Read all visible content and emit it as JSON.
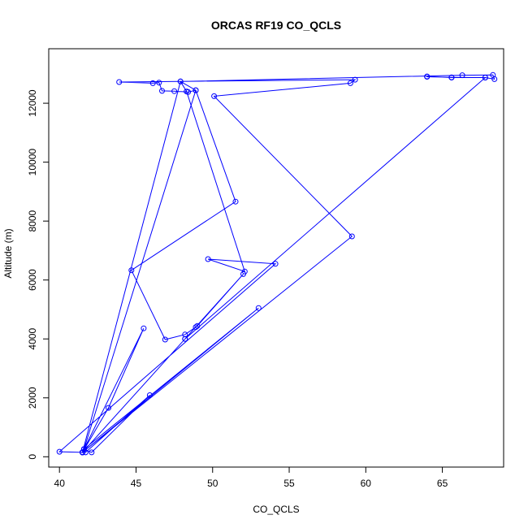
{
  "chart_data": {
    "type": "line",
    "title": "ORCAS RF19 CO_QCLS",
    "xlabel": "CO_QCLS",
    "ylabel": "Altitude (m)",
    "xlim": [
      39.3,
      69.0
    ],
    "ylim": [
      -350,
      13850
    ],
    "xticks": [
      40,
      45,
      50,
      55,
      60,
      65
    ],
    "yticks": [
      0,
      2000,
      4000,
      6000,
      8000,
      10000,
      12000
    ],
    "x_tick_labels": [
      "40",
      "45",
      "50",
      "55",
      "60",
      "65"
    ],
    "y_tick_labels": [
      "0",
      "2000",
      "4000",
      "6000",
      "8000",
      "10000",
      "12000"
    ],
    "grid": false,
    "legend": "none",
    "series_color": "#0000ff",
    "series": [
      {
        "points": [
          [
            41.5,
            150
          ],
          [
            41.6,
            260
          ],
          [
            42.1,
            150
          ],
          [
            45.9,
            2090
          ],
          [
            41.7,
            150
          ],
          [
            41.5,
            150
          ],
          [
            48.2,
            4000
          ],
          [
            52.0,
            6200
          ],
          [
            49.0,
            4440
          ],
          [
            48.9,
            4400
          ],
          [
            48.2,
            4150
          ],
          [
            46.9,
            3980
          ],
          [
            44.7,
            6330
          ],
          [
            51.5,
            8660
          ],
          [
            48.9,
            12440
          ],
          [
            48.4,
            12380
          ],
          [
            47.5,
            12410
          ],
          [
            46.7,
            12420
          ],
          [
            46.5,
            12700
          ],
          [
            46.1,
            12680
          ],
          [
            43.9,
            12720
          ],
          [
            59.3,
            12800
          ],
          [
            59.0,
            12680
          ],
          [
            50.1,
            12240
          ],
          [
            59.1,
            7480
          ],
          [
            41.5,
            150
          ],
          [
            40.0,
            170
          ],
          [
            54.1,
            6550
          ],
          [
            49.7,
            6710
          ],
          [
            52.1,
            6290
          ],
          [
            48.3,
            12400
          ],
          [
            47.9,
            12740
          ],
          [
            66.3,
            12950
          ],
          [
            68.3,
            12960
          ],
          [
            68.4,
            12820
          ],
          [
            67.8,
            12870
          ],
          [
            65.6,
            12870
          ],
          [
            64.0,
            12910
          ],
          [
            64.0,
            12900
          ],
          [
            65.6,
            12880
          ],
          [
            67.8,
            12870
          ],
          [
            48.2,
            4000
          ],
          [
            41.5,
            150
          ],
          [
            41.6,
            260
          ],
          [
            53.0,
            5050
          ],
          [
            41.5,
            150
          ],
          [
            47.9,
            12740
          ],
          [
            48.9,
            12440
          ],
          [
            41.6,
            260
          ],
          [
            45.5,
            4360
          ],
          [
            43.2,
            1660
          ],
          [
            41.5,
            150
          ]
        ]
      }
    ]
  }
}
